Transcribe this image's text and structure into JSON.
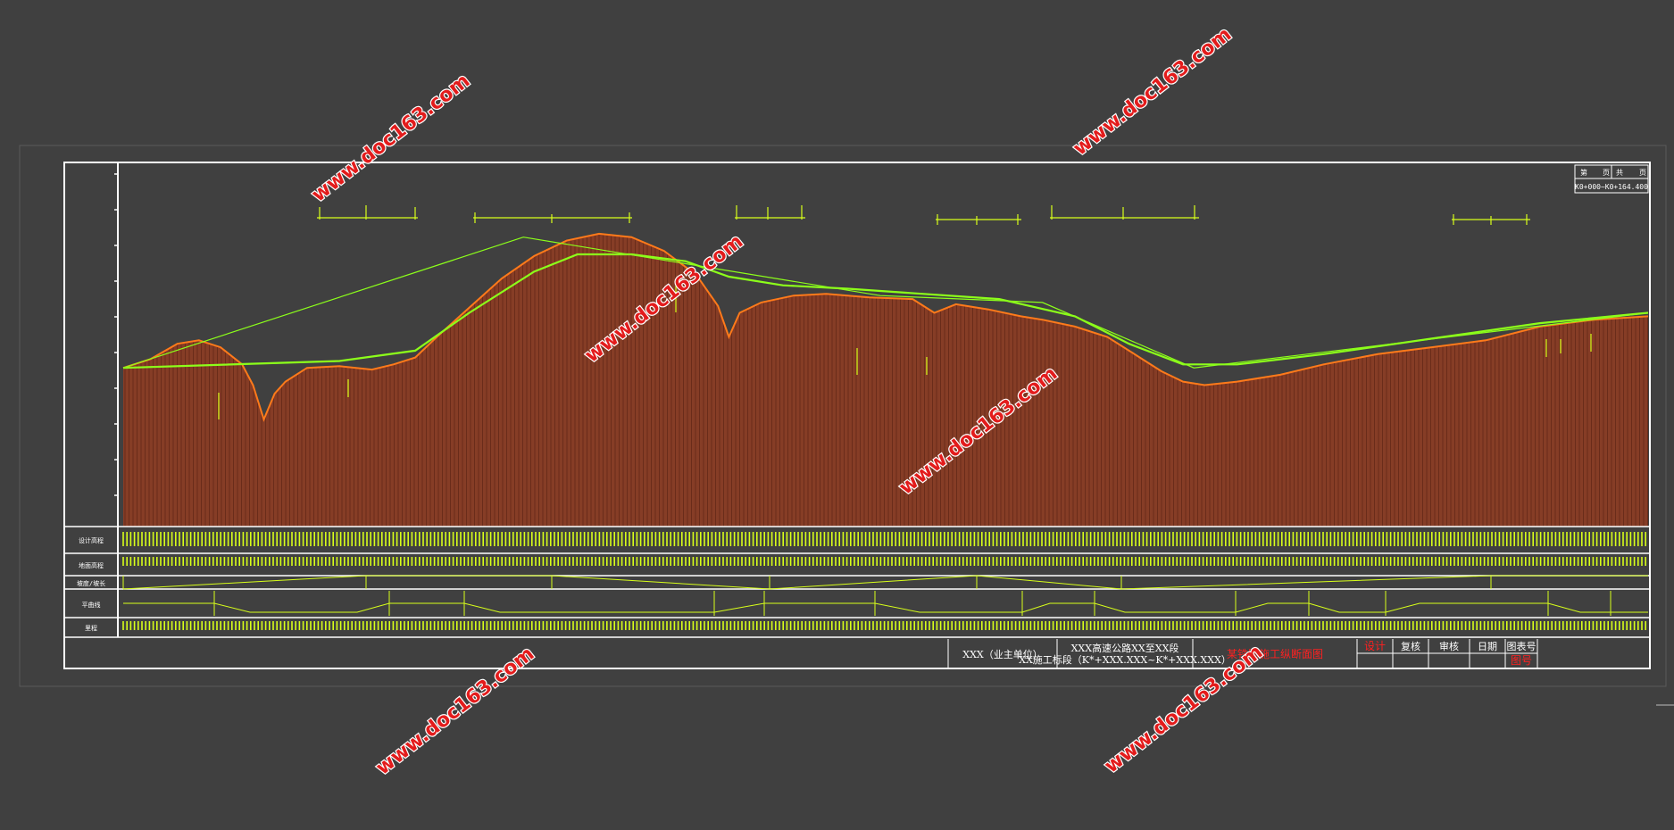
{
  "watermark": "www.doc163.com",
  "sheet": {
    "page_label_1": "第",
    "page_label_2": "页",
    "page_label_3": "共",
    "page_label_4": "页",
    "station_range": "K0+000~K0+164.400"
  },
  "title_block": {
    "owner": "XXX（业主单位）",
    "project_line1": "XXX高速公路XX至XX段",
    "project_line2": "XX施工标段（K*+XXX.XXX~K*+XXX.XXX）",
    "drawing_title": "某铁路施工纵断面图",
    "design": "设计",
    "review": "复核",
    "audit": "审核",
    "date": "日期",
    "drawing_no_label": "图表号",
    "drawing_no": "图号"
  },
  "band_labels": [
    "设计高程",
    "地面高程",
    "坡度/坡长",
    "平曲线",
    "里程"
  ],
  "colors": {
    "background": "#404040",
    "frame": "#ffffff",
    "ground_line": "#ff7a1a",
    "ground_fill": "#8a3d25",
    "design_line": "#8cff1a",
    "annotation": "#d8ff1a",
    "watermark": "#e31c1c"
  },
  "profile": {
    "ground": [
      [
        0,
        80
      ],
      [
        5,
        75
      ],
      [
        10,
        66
      ],
      [
        14,
        64
      ],
      [
        18,
        68
      ],
      [
        22,
        78
      ],
      [
        24,
        90
      ],
      [
        26,
        110
      ],
      [
        28,
        95
      ],
      [
        30,
        88
      ],
      [
        34,
        80
      ],
      [
        40,
        79
      ],
      [
        46,
        81
      ],
      [
        50,
        78
      ],
      [
        54,
        74
      ],
      [
        58,
        62
      ],
      [
        64,
        45
      ],
      [
        70,
        28
      ],
      [
        76,
        15
      ],
      [
        82,
        6
      ],
      [
        88,
        2
      ],
      [
        94,
        4
      ],
      [
        100,
        12
      ],
      [
        106,
        26
      ],
      [
        110,
        44
      ],
      [
        112,
        62
      ],
      [
        114,
        48
      ],
      [
        118,
        42
      ],
      [
        124,
        38
      ],
      [
        130,
        37
      ],
      [
        138,
        39
      ],
      [
        146,
        40
      ],
      [
        150,
        48
      ],
      [
        154,
        43
      ],
      [
        160,
        46
      ],
      [
        166,
        50
      ],
      [
        170,
        52
      ],
      [
        176,
        56
      ],
      [
        182,
        62
      ],
      [
        188,
        74
      ],
      [
        192,
        82
      ],
      [
        196,
        88
      ],
      [
        200,
        90
      ],
      [
        206,
        88
      ],
      [
        214,
        84
      ],
      [
        222,
        78
      ],
      [
        232,
        72
      ],
      [
        242,
        68
      ],
      [
        252,
        64
      ],
      [
        262,
        56
      ],
      [
        272,
        52
      ],
      [
        282,
        50
      ]
    ],
    "design": [
      [
        0,
        80
      ],
      [
        40,
        76
      ],
      [
        54,
        70
      ],
      [
        64,
        48
      ],
      [
        76,
        24
      ],
      [
        84,
        14
      ],
      [
        94,
        14
      ],
      [
        104,
        18
      ],
      [
        112,
        27
      ],
      [
        122,
        32
      ],
      [
        134,
        34
      ],
      [
        148,
        37
      ],
      [
        162,
        40
      ],
      [
        176,
        50
      ],
      [
        186,
        66
      ],
      [
        196,
        78
      ],
      [
        206,
        78
      ],
      [
        222,
        72
      ],
      [
        242,
        63
      ],
      [
        262,
        54
      ],
      [
        282,
        48
      ]
    ],
    "tangents": [
      [
        0,
        80
      ],
      [
        74,
        4
      ],
      [
        140,
        38
      ],
      [
        170,
        42
      ],
      [
        198,
        80
      ],
      [
        282,
        48
      ]
    ]
  }
}
